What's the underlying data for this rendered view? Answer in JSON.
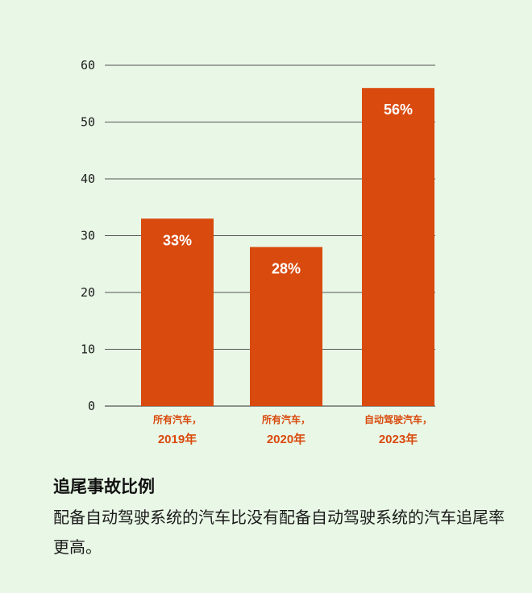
{
  "chart_data": {
    "type": "bar",
    "categories": [
      {
        "line1": "所有汽车，",
        "line2": "2019年"
      },
      {
        "line1": "所有汽车，",
        "line2": "2020年"
      },
      {
        "line1": "自动驾驶汽车，",
        "line2": "2023年"
      }
    ],
    "values": [
      33,
      28,
      56
    ],
    "value_labels": [
      "33%",
      "28%",
      "56%"
    ],
    "ylim": [
      0,
      60
    ],
    "yticks": [
      0,
      10,
      20,
      30,
      40,
      50,
      60
    ],
    "grid": true,
    "bar_color": "#d94a0e",
    "label_color": "#d94a0e",
    "grid_color": "#555555"
  },
  "caption": {
    "title": "追尾事故比例",
    "body": "配备自动驾驶系统的汽车比没有配备自动驾驶系统的汽车追尾率更高。"
  }
}
